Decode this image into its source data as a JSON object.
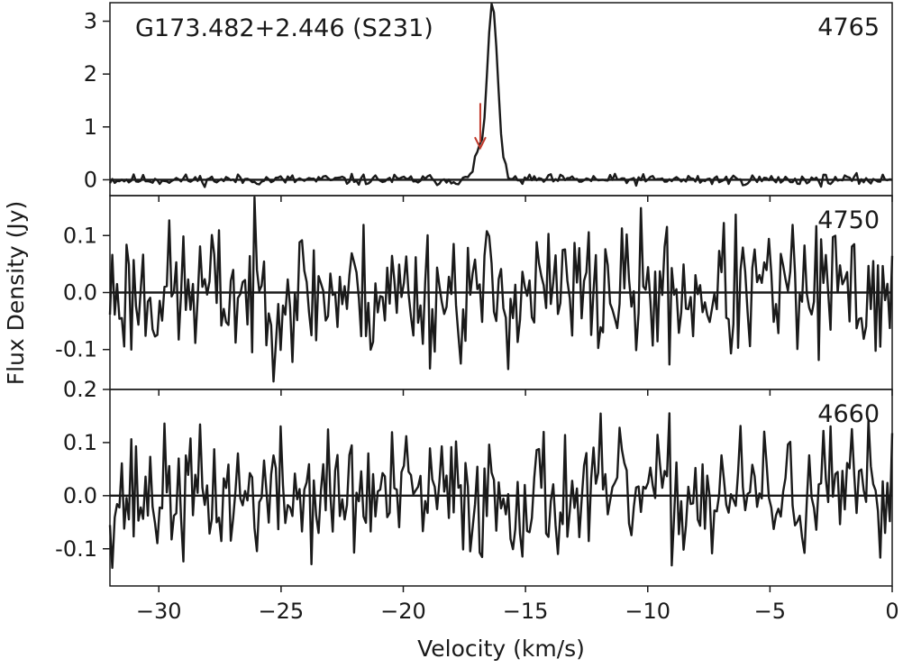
{
  "chart_data": {
    "type": "line",
    "title": "G173.482+2.446 (S231)",
    "xlabel": "Velocity (km/s)",
    "ylabel": "Flux Density (Jy)",
    "xlim": [
      -32,
      0
    ],
    "x_ticks": [
      -30,
      -25,
      -20,
      -15,
      -10,
      -5,
      0
    ],
    "x_tick_labels": [
      "−30",
      "−25",
      "−20",
      "−15",
      "−10",
      "−5",
      "0"
    ],
    "line_color": "#1a1a1a",
    "arrow_color": "#c0392b",
    "panels": [
      {
        "label": "4765",
        "ylim": [
          -0.3,
          3.35
        ],
        "y_ticks": [
          0,
          1,
          2,
          3
        ],
        "y_tick_labels": [
          "0",
          "1",
          "2",
          "3"
        ],
        "noise": 0.05,
        "seed": 11,
        "peaks": [
          {
            "x": -16.35,
            "y": 3.3,
            "width": 0.22
          },
          {
            "x": -16.95,
            "y": 0.5,
            "width": 0.15
          }
        ],
        "arrow": {
          "x": -16.85,
          "y_from": 1.45,
          "y_to": 0.6
        }
      },
      {
        "label": "4750",
        "ylim": [
          -0.17,
          0.17
        ],
        "y_ticks": [
          0.1,
          0.0,
          -0.1
        ],
        "y_tick_labels": [
          "0.1",
          "0.0",
          "-0.1"
        ],
        "noise": 0.06,
        "seed": 23
      },
      {
        "label": "4660",
        "ylim": [
          -0.17,
          0.2
        ],
        "y_ticks": [
          0.2,
          0.1,
          0.0,
          -0.1
        ],
        "y_tick_labels": [
          "0.2",
          "0.1",
          "0.0",
          "-0.1"
        ],
        "noise": 0.06,
        "seed": 37
      }
    ]
  }
}
